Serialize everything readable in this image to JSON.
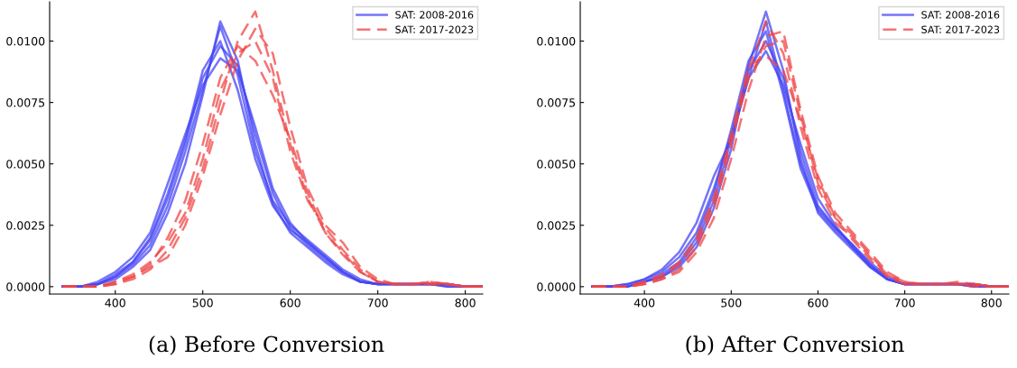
{
  "chart_data": [
    {
      "type": "line",
      "title": "(a) Before Conversion",
      "legend": "top right",
      "grid": false,
      "x": [
        340,
        360,
        380,
        400,
        420,
        440,
        460,
        480,
        500,
        520,
        540,
        560,
        580,
        600,
        620,
        640,
        660,
        680,
        700,
        720,
        740,
        760,
        780,
        800,
        820
      ],
      "xlim": [
        325,
        820
      ],
      "xticks": [
        400,
        500,
        600,
        700,
        800
      ],
      "ylim": [
        -0.0003,
        0.0116
      ],
      "yticks": [
        {
          "value": 0,
          "label": "0.0000"
        },
        {
          "value": 0.0025,
          "label": "0.0025"
        },
        {
          "value": 0.005,
          "label": "0.0050"
        },
        {
          "value": 0.0075,
          "label": "0.0075"
        },
        {
          "value": 0.01,
          "label": "0.0100"
        }
      ],
      "series": [
        {
          "name": "SAT: 2008-2016",
          "color": "#4545f5",
          "line_style": "solid",
          "values": [
            0,
            0,
            0.0001,
            0.0004,
            0.0009,
            0.0017,
            0.0033,
            0.0055,
            0.008,
            0.0106,
            0.0086,
            0.0055,
            0.0035,
            0.0025,
            0.0019,
            0.0013,
            0.0007,
            0.0003,
            0.0001,
            0.0001,
            0.0001,
            0.0001,
            0.0001,
            0,
            0
          ]
        },
        {
          "color": "#4545f5",
          "line_style": "solid",
          "values": [
            0,
            0,
            0.0001,
            0.0005,
            0.001,
            0.0019,
            0.0036,
            0.0058,
            0.0085,
            0.0098,
            0.009,
            0.0062,
            0.0038,
            0.0024,
            0.0017,
            0.0011,
            0.0006,
            0.0002,
            0.0001,
            0.0001,
            0.0001,
            0.0001,
            0,
            0,
            0
          ]
        },
        {
          "color": "#4545f5",
          "line_style": "solid",
          "values": [
            0,
            0,
            0.0002,
            0.0006,
            0.0012,
            0.0022,
            0.0042,
            0.0062,
            0.0082,
            0.0093,
            0.0088,
            0.0065,
            0.004,
            0.0026,
            0.0018,
            0.0012,
            0.0006,
            0.0002,
            0.0001,
            0.0001,
            0.0001,
            0.0001,
            0.0001,
            0,
            0
          ]
        },
        {
          "color": "#4545f5",
          "line_style": "solid",
          "values": [
            0,
            0,
            0.0001,
            0.0003,
            0.0008,
            0.0015,
            0.003,
            0.005,
            0.0078,
            0.0108,
            0.0092,
            0.0058,
            0.0034,
            0.0022,
            0.0016,
            0.001,
            0.0005,
            0.0002,
            0.0001,
            0.0001,
            0.0001,
            0.0001,
            0,
            0,
            0
          ]
        },
        {
          "color": "#4545f5",
          "line_style": "solid",
          "values": [
            0,
            0,
            0.0001,
            0.0004,
            0.001,
            0.002,
            0.0038,
            0.006,
            0.0088,
            0.01,
            0.008,
            0.0052,
            0.0033,
            0.0023,
            0.0018,
            0.0012,
            0.0006,
            0.0002,
            0.0001,
            0.0001,
            0.0001,
            0.0001,
            0.0001,
            0,
            0
          ]
        },
        {
          "name": "SAT: 2017-2023",
          "color": "#f04545",
          "line_style": "dashed",
          "values": [
            0,
            0,
            0,
            0.0001,
            0.0003,
            0.0007,
            0.0015,
            0.0028,
            0.0048,
            0.0075,
            0.01,
            0.0112,
            0.0088,
            0.0058,
            0.0036,
            0.0022,
            0.0013,
            0.0006,
            0.0002,
            0.0001,
            0.0001,
            0.0002,
            0.0001,
            0,
            0
          ]
        },
        {
          "color": "#f04545",
          "line_style": "dashed",
          "values": [
            0,
            0,
            0,
            0.0002,
            0.0005,
            0.001,
            0.0018,
            0.003,
            0.0052,
            0.008,
            0.0095,
            0.01,
            0.0085,
            0.0055,
            0.0035,
            0.0024,
            0.0015,
            0.0007,
            0.0002,
            0.0001,
            0.0001,
            0.0001,
            0.0001,
            0,
            0
          ]
        },
        {
          "color": "#f04545",
          "line_style": "dashed",
          "values": [
            0,
            0,
            0,
            0.0001,
            0.0004,
            0.0008,
            0.0012,
            0.0025,
            0.0045,
            0.007,
            0.0092,
            0.0105,
            0.0095,
            0.0065,
            0.004,
            0.0025,
            0.0018,
            0.0008,
            0.0003,
            0.0001,
            0.0001,
            0.0001,
            0.0001,
            0,
            0
          ]
        },
        {
          "color": "#f04545",
          "line_style": "dashed",
          "values": [
            0,
            0,
            0,
            0.0002,
            0.0004,
            0.0009,
            0.002,
            0.0035,
            0.0058,
            0.0085,
            0.0098,
            0.0092,
            0.0078,
            0.006,
            0.0038,
            0.0022,
            0.0014,
            0.0006,
            0.0002,
            0.0001,
            0.0001,
            0.0002,
            0.0001,
            0,
            0
          ]
        }
      ]
    },
    {
      "type": "line",
      "title": "(b) After Conversion",
      "legend": "top right",
      "grid": false,
      "x": [
        340,
        360,
        380,
        400,
        420,
        440,
        460,
        480,
        500,
        520,
        540,
        560,
        580,
        600,
        620,
        640,
        660,
        680,
        700,
        720,
        740,
        760,
        780,
        800,
        820
      ],
      "xlim": [
        326,
        820
      ],
      "xticks": [
        400,
        500,
        600,
        700,
        800
      ],
      "ylim": [
        -0.0003,
        0.0116
      ],
      "yticks": [
        {
          "value": 0,
          "label": "0.0000"
        },
        {
          "value": 0.0025,
          "label": "0.0025"
        },
        {
          "value": 0.005,
          "label": "0.0050"
        },
        {
          "value": 0.0075,
          "label": "0.0075"
        },
        {
          "value": 0.01,
          "label": "0.0100"
        }
      ],
      "series": [
        {
          "name": "SAT: 2008-2016",
          "color": "#4545f5",
          "line_style": "solid",
          "values": [
            0,
            0,
            0,
            0.0002,
            0.0004,
            0.0009,
            0.0018,
            0.0035,
            0.006,
            0.0085,
            0.0108,
            0.008,
            0.005,
            0.0032,
            0.0024,
            0.0017,
            0.001,
            0.0004,
            0.0001,
            0.0001,
            0.0001,
            0.0001,
            0.0001,
            0,
            0
          ]
        },
        {
          "color": "#4545f5",
          "line_style": "solid",
          "values": [
            0,
            0,
            0.0001,
            0.0003,
            0.0006,
            0.0012,
            0.0022,
            0.004,
            0.0062,
            0.0088,
            0.01,
            0.0085,
            0.0055,
            0.0033,
            0.0024,
            0.0017,
            0.0009,
            0.0003,
            0.0001,
            0.0001,
            0.0001,
            0.0001,
            0,
            0,
            0
          ]
        },
        {
          "color": "#4545f5",
          "line_style": "solid",
          "values": [
            0,
            0,
            0.0001,
            0.0003,
            0.0007,
            0.0014,
            0.0026,
            0.0045,
            0.006,
            0.0085,
            0.0096,
            0.0082,
            0.0058,
            0.0036,
            0.0025,
            0.0016,
            0.0008,
            0.0003,
            0.0001,
            0.0001,
            0.0001,
            0.0001,
            0.0001,
            0,
            0
          ]
        },
        {
          "color": "#4545f5",
          "line_style": "solid",
          "values": [
            0,
            0,
            0,
            0.0002,
            0.0004,
            0.0008,
            0.0016,
            0.0032,
            0.0056,
            0.009,
            0.0112,
            0.0088,
            0.0052,
            0.003,
            0.0022,
            0.0015,
            0.0008,
            0.0003,
            0.0001,
            0.0001,
            0.0001,
            0.0001,
            0,
            0,
            0
          ]
        },
        {
          "color": "#4545f5",
          "line_style": "solid",
          "values": [
            0,
            0,
            0,
            0.0002,
            0.0005,
            0.001,
            0.002,
            0.0038,
            0.0064,
            0.0092,
            0.0104,
            0.0078,
            0.0048,
            0.0031,
            0.0023,
            0.0016,
            0.0009,
            0.0003,
            0.0001,
            0.0001,
            0.0001,
            0.0001,
            0.0001,
            0,
            0
          ]
        },
        {
          "name": "SAT: 2017-2023",
          "color": "#f04545",
          "line_style": "dashed",
          "values": [
            0,
            0,
            0,
            0.0001,
            0.0003,
            0.0007,
            0.0016,
            0.0032,
            0.0058,
            0.0088,
            0.0108,
            0.0095,
            0.0065,
            0.004,
            0.0026,
            0.002,
            0.0012,
            0.0005,
            0.0002,
            0.0001,
            0.0001,
            0.0001,
            0.0001,
            0,
            0
          ]
        },
        {
          "color": "#f04545",
          "line_style": "dashed",
          "values": [
            0,
            0,
            0,
            0.0002,
            0.0004,
            0.0009,
            0.0018,
            0.0034,
            0.006,
            0.0085,
            0.0098,
            0.01,
            0.007,
            0.0042,
            0.0028,
            0.0021,
            0.0013,
            0.0005,
            0.0001,
            0.0001,
            0.0001,
            0.0001,
            0,
            0,
            0
          ]
        },
        {
          "color": "#f04545",
          "line_style": "dashed",
          "values": [
            0,
            0,
            0,
            0.0001,
            0.0003,
            0.0006,
            0.0014,
            0.0028,
            0.0052,
            0.008,
            0.0102,
            0.0104,
            0.0072,
            0.0045,
            0.003,
            0.0022,
            0.0014,
            0.0006,
            0.0002,
            0.0001,
            0.0001,
            0.0002,
            0.0001,
            0,
            0
          ]
        },
        {
          "color": "#f04545",
          "line_style": "dashed",
          "values": [
            0,
            0,
            0,
            0.0002,
            0.0005,
            0.001,
            0.002,
            0.0036,
            0.0062,
            0.009,
            0.0094,
            0.0088,
            0.0068,
            0.0044,
            0.0028,
            0.0019,
            0.0011,
            0.0004,
            0.0001,
            0.0001,
            0.0001,
            0.0001,
            0.0001,
            0,
            0
          ]
        }
      ]
    }
  ]
}
